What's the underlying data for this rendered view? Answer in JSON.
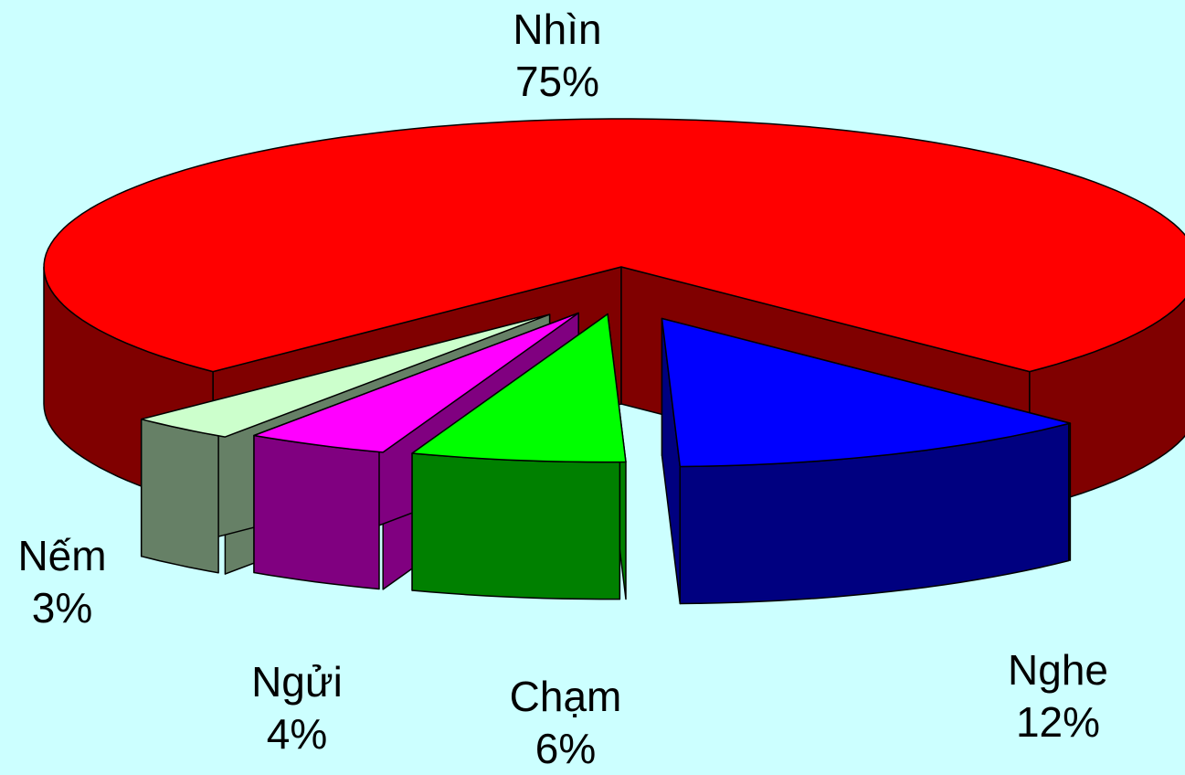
{
  "chart_data": {
    "type": "pie",
    "style": "3d-exploded",
    "background": "#ccffff",
    "slices": [
      {
        "label": "Nhìn",
        "value": 75,
        "percent_label": "75%",
        "top_color": "#ff0000",
        "side_color": "#800000"
      },
      {
        "label": "Nghe",
        "value": 12,
        "percent_label": "12%",
        "top_color": "#0000ff",
        "side_color": "#000080"
      },
      {
        "label": "Chạm",
        "value": 6,
        "percent_label": "6%",
        "top_color": "#00ff00",
        "side_color": "#008000"
      },
      {
        "label": "Ngửi",
        "value": 4,
        "percent_label": "4%",
        "top_color": "#ff00ff",
        "side_color": "#800080"
      },
      {
        "label": "Nếm",
        "value": 3,
        "percent_label": "3%",
        "top_color": "#ccffcc",
        "side_color": "#668066"
      }
    ]
  }
}
